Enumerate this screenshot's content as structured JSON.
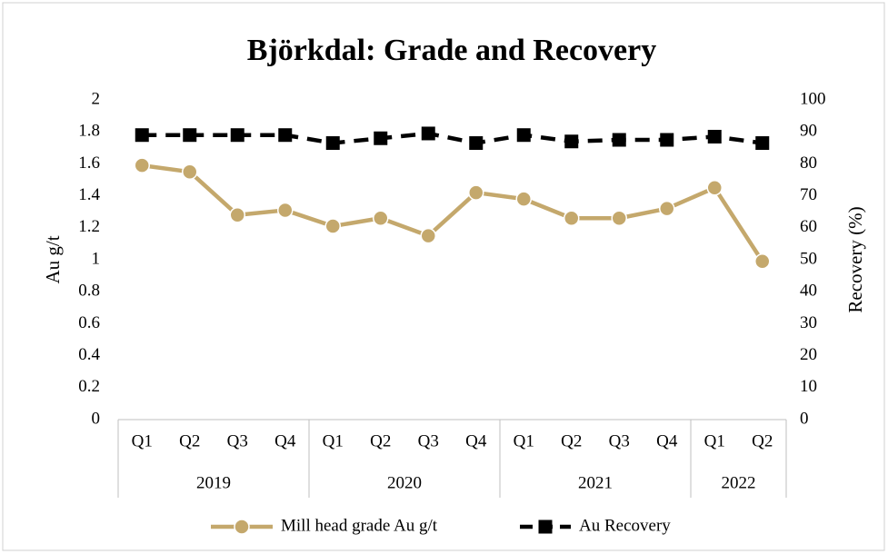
{
  "chart_data": {
    "type": "line",
    "title": "Björkdal: Grade and Recovery",
    "y_label": "Au g/t",
    "y2_label": "Recovery (%)",
    "categories": [
      "Q1",
      "Q2",
      "Q3",
      "Q4",
      "Q1",
      "Q2",
      "Q3",
      "Q4",
      "Q1",
      "Q2",
      "Q3",
      "Q4",
      "Q1",
      "Q2"
    ],
    "category_groups": [
      {
        "label": "2019",
        "count": 4
      },
      {
        "label": "2020",
        "count": 4
      },
      {
        "label": "2021",
        "count": 4
      },
      {
        "label": "2022",
        "count": 2
      }
    ],
    "series": [
      {
        "name": "Mill head grade Au g/t",
        "color": "#c4a86c",
        "marker": "circle",
        "axis": "y",
        "values": [
          1.59,
          1.55,
          1.28,
          1.31,
          1.21,
          1.26,
          1.15,
          1.42,
          1.38,
          1.26,
          1.26,
          1.32,
          1.45,
          0.99
        ]
      },
      {
        "name": "Au Recovery",
        "color": "#000000",
        "marker": "square",
        "dashed": true,
        "axis": "y2",
        "values": [
          89,
          89,
          89,
          89,
          86.5,
          88,
          89.5,
          86.5,
          89,
          87,
          87.5,
          87.5,
          88.5,
          86.5
        ]
      }
    ],
    "ylim": [
      0,
      2
    ],
    "yticks": [
      0,
      0.2,
      0.4,
      0.6,
      0.8,
      1,
      1.2,
      1.4,
      1.6,
      1.8,
      2
    ],
    "y2lim": [
      0,
      100
    ],
    "y2ticks": [
      0,
      10,
      20,
      30,
      40,
      50,
      60,
      70,
      80,
      90,
      100
    ],
    "grid": false,
    "legend": "bottom"
  }
}
